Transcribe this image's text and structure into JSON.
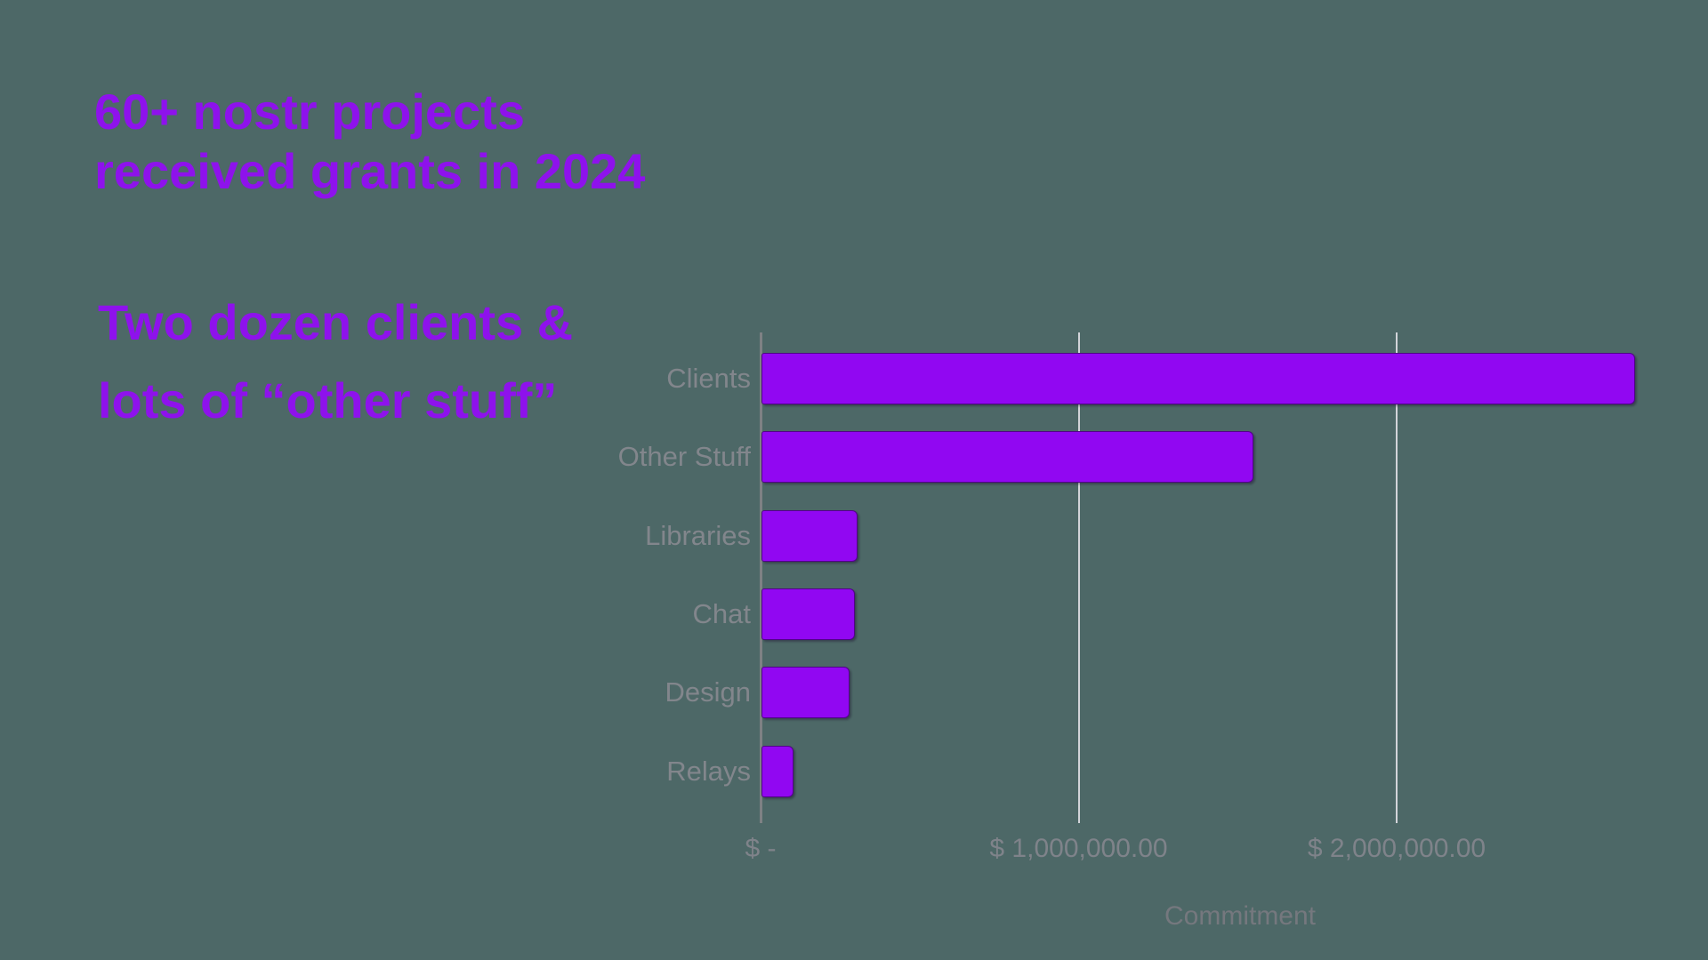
{
  "slide": {
    "title_lines": [
      "60+ nostr projects",
      "received grants in 2024"
    ],
    "subtitle_lines": [
      "Two dozen clients &",
      "lots of “other stuff”"
    ]
  },
  "chart_data": {
    "type": "bar",
    "orientation": "horizontal",
    "title": "",
    "categories": [
      "Clients",
      "Other Stuff",
      "Libraries",
      "Chat",
      "Design",
      "Relays"
    ],
    "values": [
      2740000,
      1540000,
      296000,
      288000,
      270000,
      96000
    ],
    "xlabel": "Commitment",
    "ylabel": "",
    "x_ticks": [
      {
        "label": "$ -",
        "value": 0
      },
      {
        "label": "$ 1,000,000.00",
        "value": 1000000
      },
      {
        "label": "$ 2,000,000.00",
        "value": 2000000
      }
    ],
    "xlim": [
      0,
      2860000
    ],
    "grid": true,
    "legend": false
  },
  "colors": {
    "background": "#4D6867",
    "heading_text": "#8E12EC",
    "label_text": "#82868C",
    "axis_title_text": "#75787E",
    "gridline": "#D2D4D9",
    "axis_line": "#7E8184",
    "bar_fill": "#9107F2",
    "bar_border": "#1E0032"
  }
}
